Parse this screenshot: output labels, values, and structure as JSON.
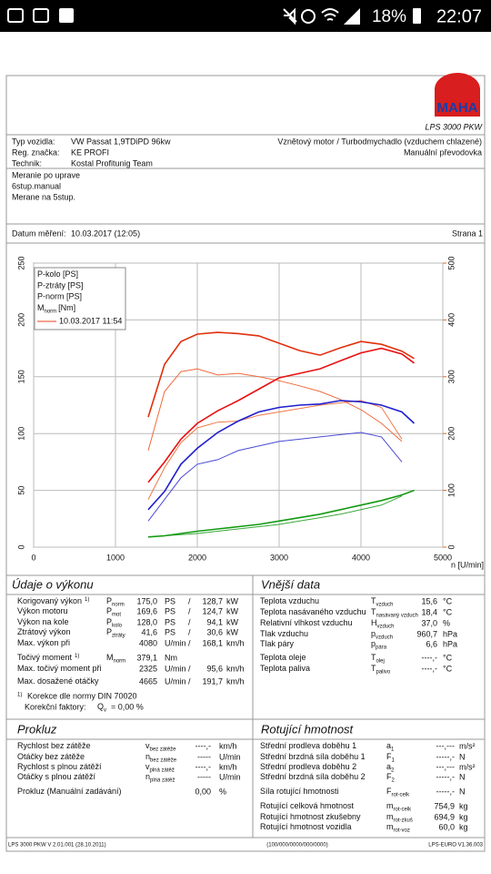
{
  "status_bar": {
    "battery": "18%",
    "time": "22:07"
  },
  "header": {
    "logo": "MAHA",
    "product": "LPS 3000 PKW"
  },
  "vehicle": [
    [
      "Typ vozidla:",
      "VW Passat 1,9TDiPD 96kw"
    ],
    [
      "Reg. značka:",
      "KE PROFI"
    ],
    [
      "Technik:",
      "Kostal Profitunig Team"
    ]
  ],
  "vehicle_right": [
    "Vznětový motor / Turbodmychadlo (vzduchem chlazené)",
    "Manuální převodovka"
  ],
  "notes": [
    "Meranie po uprave",
    "6stup.manual",
    "Merane na 5stup."
  ],
  "date_line": {
    "label": "Datum měření:",
    "value": "10.03.2017 (12:05)",
    "page": "Strana 1"
  },
  "chart_data": {
    "type": "line",
    "x_label": "n [U/min]",
    "x": [
      1400,
      1600,
      1800,
      2000,
      2250,
      2500,
      2750,
      3000,
      3250,
      3500,
      3750,
      4000,
      4250,
      4500,
      4650
    ],
    "xlim": [
      0,
      5000
    ],
    "xticks": [
      0,
      1000,
      2000,
      3000,
      4000,
      5000
    ],
    "ylim": [
      0,
      250
    ],
    "yticks": [
      0,
      50,
      100,
      150,
      200,
      250
    ],
    "y2lim": [
      0,
      500
    ],
    "y2ticks": [
      0,
      100,
      200,
      300,
      400,
      500
    ],
    "y2tick_color": "#e8641e",
    "grid": true,
    "legend": "top-left",
    "series": [
      {
        "name": "P-kolo [PS]",
        "color": "#1f1fcf",
        "values": [
          33,
          49,
          73,
          87,
          101,
          111,
          119,
          123,
          125,
          126,
          129,
          128,
          125,
          119,
          109
        ]
      },
      {
        "name": "P-ztráty [PS]",
        "color": "#139a13",
        "values": [
          9,
          10,
          12,
          14,
          16,
          18,
          20,
          23,
          26,
          29,
          33,
          37,
          41,
          46,
          50
        ]
      },
      {
        "name": "P-norm [PS]",
        "color": "#e81010",
        "values": [
          57,
          75,
          95,
          109,
          120,
          129,
          139,
          149,
          153,
          157,
          164,
          171,
          175,
          170,
          162
        ]
      },
      {
        "name": "M",
        "name_sub": "norm",
        "name_unit": "[Nm]",
        "color": "#e0300c",
        "axis": "y2",
        "values": [
          229,
          322,
          362,
          375,
          378,
          376,
          372,
          359,
          346,
          338,
          351,
          362,
          357,
          345,
          332
        ]
      }
    ],
    "comparison": {
      "name": "10.03.2017 11:54",
      "color": "#e8401c",
      "series": [
        {
          "color": "#4a4ad8",
          "values": [
            23,
            42,
            61,
            73,
            77,
            85,
            89,
            93,
            95,
            97,
            99,
            101,
            97,
            75,
            null
          ]
        },
        {
          "color": "#3aa83a",
          "values": [
            9,
            10,
            11,
            12,
            14,
            16,
            18,
            20,
            23,
            26,
            29,
            33,
            37,
            45,
            null
          ]
        },
        {
          "color": "#f07848",
          "values": [
            42,
            70,
            92,
            105,
            110,
            111,
            116,
            119,
            122,
            125,
            127,
            129,
            123,
            95,
            null
          ]
        },
        {
          "color": "#f06a3c",
          "axis": "y2",
          "values": [
            170,
            274,
            309,
            314,
            303,
            306,
            300,
            293,
            284,
            274,
            260,
            242,
            218,
            186,
            null
          ]
        }
      ]
    }
  },
  "performance": {
    "title": "Údaje o výkonu",
    "rows": [
      {
        "label": "Korigovaný výkon",
        "sup": "1)",
        "sym": [
          "P",
          "norm"
        ],
        "cells": [
          "175,0",
          "PS",
          "/",
          "128,7",
          "kW"
        ],
        "color": "#e00000"
      },
      {
        "label": "Výkon motoru",
        "sym": [
          "P",
          "mot"
        ],
        "cells": [
          "169,6",
          "PS",
          "/",
          "124,7",
          "kW"
        ],
        "color": "#e00000"
      },
      {
        "label": "Výkon na kole",
        "sym": [
          "P",
          "kolo"
        ],
        "cells": [
          "128,0",
          "PS",
          "/",
          "94,1",
          "kW"
        ],
        "color": "#0000d8"
      },
      {
        "label": "Ztrátový výkon",
        "sym": [
          "P",
          "ztráty"
        ],
        "cells": [
          "41,6",
          "PS",
          "/",
          "30,6",
          "kW"
        ],
        "color": "#008a00"
      },
      {
        "label": "Max. výkon při",
        "cells": [
          "4080",
          "U/min",
          "/",
          "168,1",
          "km/h"
        ]
      },
      {
        "label": "Točivý moment",
        "sup": "1)",
        "sym": [
          "M",
          "norm"
        ],
        "cells": [
          "379,1",
          "Nm"
        ],
        "color": "#e00000"
      },
      {
        "label": "Max. točivý moment při",
        "cells": [
          "2325",
          "U/min",
          "/",
          "95,6",
          "km/h"
        ]
      },
      {
        "label": "Max. dosažené otáčky",
        "cells": [
          "4665",
          "U/min",
          "/",
          "191,7",
          "km/h"
        ]
      }
    ],
    "footnote": {
      "sup": "1)",
      "text": "Korekce dle normy DIN 70020",
      "factor_label": "Korekční faktory:",
      "factor_sym": [
        "Q",
        "v"
      ],
      "factor_value": "=  0,00 %"
    }
  },
  "external": {
    "title": "Vnější data",
    "rows": [
      {
        "label": "Teplota vzduchu",
        "sym": [
          "T",
          "vzduch"
        ],
        "cells": [
          "15,6",
          "°C"
        ]
      },
      {
        "label": "Teplota nasávaného vzduchu",
        "sym": [
          "T",
          "nasávaný vzduch"
        ],
        "cells": [
          "18,4",
          "°C"
        ]
      },
      {
        "label": "Relativní vlhkost vzduchu",
        "sym": [
          "H",
          "vzduch"
        ],
        "cells": [
          "37,0",
          "%"
        ]
      },
      {
        "label": "Tlak vzduchu",
        "sym": [
          "p",
          "vzduch"
        ],
        "cells": [
          "960,7",
          "hPa"
        ]
      },
      {
        "label": "Tlak páry",
        "sym": [
          "p",
          "pára"
        ],
        "cells": [
          "6,6",
          "hPa"
        ]
      },
      {
        "label": "Teplota oleje",
        "sym": [
          "T",
          "olej"
        ],
        "cells": [
          "----,-",
          "°C"
        ]
      },
      {
        "label": "Teplota paliva",
        "sym": [
          "T",
          "palivo"
        ],
        "cells": [
          "----,-",
          "°C"
        ]
      }
    ]
  },
  "slip": {
    "title": "Prokluz",
    "rows": [
      {
        "label": "Rychlost bez zátěže",
        "sym": [
          "v",
          "bez zátěže"
        ],
        "cells": [
          "----,-",
          "km/h"
        ]
      },
      {
        "label": "Otáčky bez zátěže",
        "sym": [
          "n",
          "bez zátěže"
        ],
        "cells": [
          "-----",
          "U/min"
        ]
      },
      {
        "label": "Rychlost s plnou zátěží",
        "sym": [
          "v",
          "plná zátěž"
        ],
        "cells": [
          "----,-",
          "km/h"
        ]
      },
      {
        "label": "Otáčky s plnou zátěží",
        "sym": [
          "n",
          "plná zátěž"
        ],
        "cells": [
          "-----",
          "U/min"
        ]
      },
      {
        "label": "Prokluz (Manuální zadávání)",
        "cells": [
          "0,00",
          "%"
        ]
      }
    ]
  },
  "rotating": {
    "title": "Rotující hmotnost",
    "rows": [
      {
        "label": "Střední prodleva doběhu 1",
        "sym": [
          "a",
          "1"
        ],
        "cells": [
          "---,---",
          "m/s²"
        ]
      },
      {
        "label": "Střední brzdná síla doběhu 1",
        "sym": [
          "F",
          "1"
        ],
        "cells": [
          "-----,-",
          "N"
        ]
      },
      {
        "label": "Střední prodleva doběhu 2",
        "sym": [
          "a",
          "2"
        ],
        "cells": [
          "---,---",
          "m/s²"
        ]
      },
      {
        "label": "Střední brzdná síla doběhu 2",
        "sym": [
          "F",
          "2"
        ],
        "cells": [
          "-----,-",
          "N"
        ]
      },
      {
        "label": "Síla rotující hmotnosti",
        "sym": [
          "F",
          "rot-celk"
        ],
        "cells": [
          "-----,-",
          "N"
        ]
      },
      {
        "label": "Rotující celková hmotnost",
        "sym": [
          "m",
          "rot-celk"
        ],
        "cells": [
          "754,9",
          "kg"
        ]
      },
      {
        "label": "Rotující hmotnost zkušebny",
        "sym": [
          "m",
          "rot-zkuš"
        ],
        "cells": [
          "694,9",
          "kg"
        ]
      },
      {
        "label": "Rotující hmotnost vozidla",
        "sym": [
          "m",
          "rot-voz"
        ],
        "cells": [
          "60,0",
          "kg"
        ]
      }
    ]
  },
  "footer": [
    "LPS 3000 PKW V 2.01.001 (28.10.2011)",
    "(100/000/0000/000/0000)",
    "LPS-EURO V1.36.003"
  ]
}
